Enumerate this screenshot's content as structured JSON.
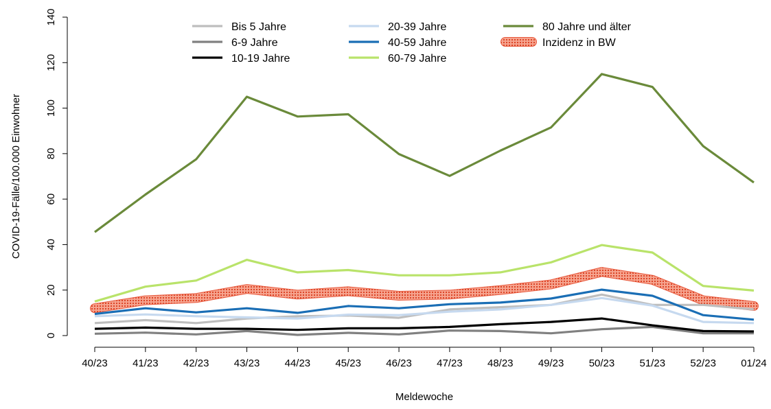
{
  "chart_data": {
    "type": "line",
    "xlabel": "Meldewoche",
    "ylabel": "COVID-19-Fälle/100.000 Einwohner",
    "ylim": [
      0,
      140
    ],
    "yticks": [
      "0",
      "20",
      "40",
      "60",
      "80",
      "100",
      "120",
      "140"
    ],
    "categories": [
      "40/23",
      "41/23",
      "42/23",
      "43/23",
      "44/23",
      "45/23",
      "46/23",
      "47/23",
      "48/23",
      "49/23",
      "50/23",
      "51/23",
      "52/23",
      "01/24"
    ],
    "grid": false,
    "legend_position": "top",
    "series": [
      {
        "name": "Bis 5 Jahre",
        "color": "#bebebe",
        "style": "line",
        "values": [
          5.5,
          6.8,
          5.5,
          7.5,
          8.5,
          8.8,
          7.8,
          11.5,
          12.5,
          13.5,
          18.0,
          13.5,
          13.5,
          11.5
        ]
      },
      {
        "name": "6-9 Jahre",
        "color": "#808080",
        "style": "line",
        "values": [
          0.8,
          1.3,
          0.5,
          2.0,
          0.3,
          1.2,
          0.5,
          2.2,
          2.0,
          1.0,
          2.8,
          3.8,
          1.0,
          1.0
        ]
      },
      {
        "name": "10-19 Jahre",
        "color": "#000000",
        "style": "line",
        "values": [
          3.0,
          3.5,
          3.0,
          3.0,
          2.5,
          3.2,
          3.2,
          3.8,
          5.0,
          6.0,
          7.5,
          4.5,
          2.0,
          1.8
        ]
      },
      {
        "name": "20-39 Jahre",
        "color": "#c6d9ef",
        "style": "line",
        "values": [
          8.5,
          9.3,
          8.5,
          8.0,
          7.5,
          9.2,
          9.0,
          10.5,
          11.5,
          13.5,
          16.5,
          13.2,
          6.0,
          5.5
        ]
      },
      {
        "name": "40-59 Jahre",
        "color": "#1a6eb5",
        "style": "line",
        "values": [
          9.5,
          12.0,
          10.2,
          12.0,
          10.0,
          13.0,
          12.0,
          13.8,
          14.5,
          16.3,
          20.2,
          17.5,
          9.0,
          7.0
        ]
      },
      {
        "name": "60-79 Jahre",
        "color": "#b9e36a",
        "style": "line",
        "values": [
          15.0,
          21.5,
          24.2,
          33.3,
          27.8,
          28.8,
          26.5,
          26.5,
          27.8,
          32.2,
          39.8,
          36.5,
          21.8,
          19.8
        ]
      },
      {
        "name": "80 Jahre und älter",
        "color": "#6a8a3a",
        "style": "line",
        "values": [
          45.5,
          62.0,
          77.5,
          105.0,
          96.3,
          97.3,
          79.8,
          70.2,
          81.3,
          91.5,
          115.0,
          109.3,
          83.3,
          67.3
        ]
      },
      {
        "name": "Inzidenz in BW",
        "color": "#ee5a3c",
        "style": "band",
        "values": [
          12.0,
          15.5,
          16.5,
          20.5,
          18.0,
          19.5,
          17.5,
          18.0,
          20.0,
          22.5,
          28.0,
          24.5,
          15.5,
          13.0
        ]
      }
    ]
  }
}
